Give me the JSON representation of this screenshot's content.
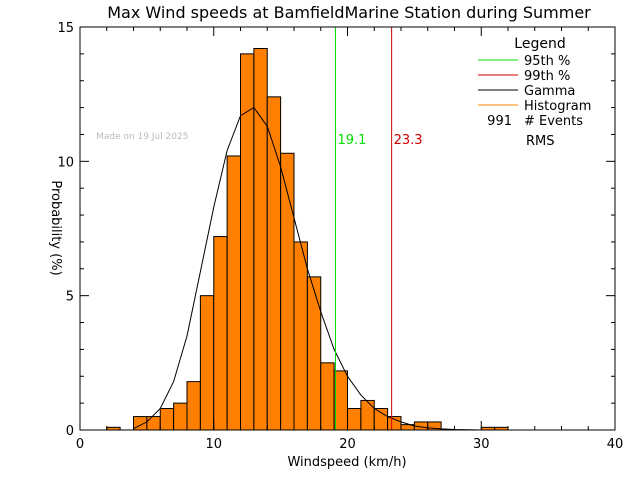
{
  "chart_data": {
    "type": "bar",
    "title": "Max Wind speeds at BamfieldMarine Station during Summer",
    "xlabel": "Windspeed (km/h)",
    "ylabel": "Probability (%)",
    "xlim": [
      0,
      40
    ],
    "ylim": [
      0,
      15
    ],
    "xticks": [
      0,
      10,
      20,
      30,
      40
    ],
    "yticks": [
      0,
      5,
      10,
      15
    ],
    "annotation": "Made on 19 Jul 2025",
    "histogram": {
      "bin_width": 1,
      "bins": [
        {
          "x0": 2,
          "value": 0.1
        },
        {
          "x0": 4,
          "value": 0.5
        },
        {
          "x0": 5,
          "value": 0.5
        },
        {
          "x0": 6,
          "value": 0.8
        },
        {
          "x0": 7,
          "value": 1.0
        },
        {
          "x0": 8,
          "value": 1.8
        },
        {
          "x0": 9,
          "value": 5.0
        },
        {
          "x0": 10,
          "value": 7.2
        },
        {
          "x0": 11,
          "value": 10.2
        },
        {
          "x0": 12,
          "value": 14.0
        },
        {
          "x0": 13,
          "value": 14.2
        },
        {
          "x0": 14,
          "value": 12.4
        },
        {
          "x0": 15,
          "value": 10.3
        },
        {
          "x0": 16,
          "value": 7.0
        },
        {
          "x0": 17,
          "value": 5.7
        },
        {
          "x0": 18,
          "value": 2.5
        },
        {
          "x0": 19,
          "value": 2.2
        },
        {
          "x0": 20,
          "value": 0.8
        },
        {
          "x0": 21,
          "value": 1.1
        },
        {
          "x0": 22,
          "value": 0.8
        },
        {
          "x0": 23,
          "value": 0.5
        },
        {
          "x0": 24,
          "value": 0.2
        },
        {
          "x0": 25,
          "value": 0.3
        },
        {
          "x0": 26,
          "value": 0.3
        },
        {
          "x0": 30,
          "value": 0.1
        },
        {
          "x0": 31,
          "value": 0.1
        }
      ]
    },
    "gamma_curve": {
      "x": [
        4.0,
        5.0,
        6.0,
        7.0,
        8.0,
        9.0,
        10.0,
        11.0,
        12.0,
        13.0,
        14.0,
        15.0,
        16.0,
        17.0,
        18.0,
        19.0,
        20.0,
        21.0,
        22.0,
        23.0,
        24.0,
        25.0,
        26.0,
        27.0,
        28.0,
        30.0
      ],
      "y": [
        0.05,
        0.3,
        0.8,
        1.8,
        3.5,
        5.9,
        8.3,
        10.4,
        11.7,
        12.0,
        11.3,
        9.8,
        7.9,
        6.0,
        4.4,
        3.0,
        2.0,
        1.3,
        0.8,
        0.5,
        0.3,
        0.15,
        0.08,
        0.04,
        0.02,
        0.0
      ]
    },
    "p95": {
      "value": 19.1,
      "label": "19.1",
      "color": "#00dd00"
    },
    "p99": {
      "value": 23.3,
      "label": "23.3",
      "color": "#cc0000"
    },
    "legend": {
      "title": "Legend",
      "placement": "top-right",
      "entries": [
        {
          "label": "95th %",
          "color": "#00dd00"
        },
        {
          "label": "99th %",
          "color": "#cc0000"
        },
        {
          "label": "Gamma",
          "color": "#000000"
        },
        {
          "label": "Histogram",
          "color": "#ff8000"
        }
      ],
      "events_count": "991",
      "events_label": "# Events",
      "rms_label": "RMS"
    },
    "colors": {
      "bar_fill": "#ff8000",
      "bar_stroke": "#000000",
      "annotation": "#bbbbbb"
    }
  }
}
